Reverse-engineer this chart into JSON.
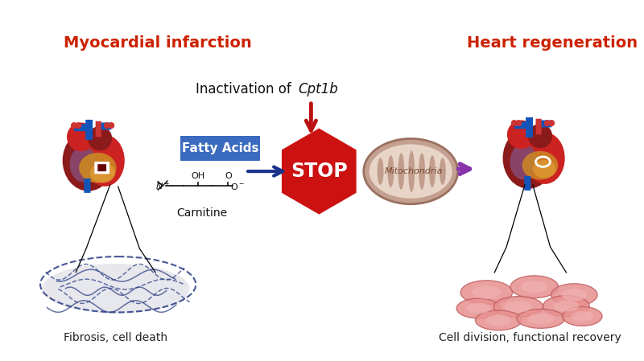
{
  "background_color": "#ffffff",
  "title_left": "Myocardial infarction",
  "title_right": "Heart regeneration",
  "title_color": "#cc2200",
  "title_fontsize": 14,
  "inactivation_text": "Inactivation of ",
  "inactivation_italic": "Cpt1b",
  "inactivation_color": "#111111",
  "inactivation_fontsize": 12,
  "fatty_acids_label": "Fatty Acids",
  "fatty_acids_box_color": "#3a6bbf",
  "fatty_acids_text_color": "#ffffff",
  "fatty_acids_fontsize": 11,
  "carnitine_label": "Carnitine",
  "stop_label": "STOP",
  "stop_color": "#cc1111",
  "stop_text_color": "#ffffff",
  "mitochondria_label": "Mitochondria",
  "mito_outer_color": "#c4a090",
  "mito_inner_color": "#e8d5c8",
  "mito_crista_color": "#b89080",
  "fibrosis_label": "Fibrosis, cell death",
  "cell_division_label": "Cell division, functional recovery",
  "arrow_color_red": "#bb1111",
  "arrow_color_blue": "#1a3388",
  "arrow_color_purple": "#8833aa",
  "label_color": "#222222",
  "label_fontsize": 10,
  "heart_dark_red": "#8b1a1a",
  "heart_mid_red": "#cc2222",
  "heart_light_red": "#dd5555",
  "heart_purple": "#884466",
  "heart_blue": "#1155bb",
  "heart_gold": "#cc8822",
  "heart_gold2": "#dd9933"
}
